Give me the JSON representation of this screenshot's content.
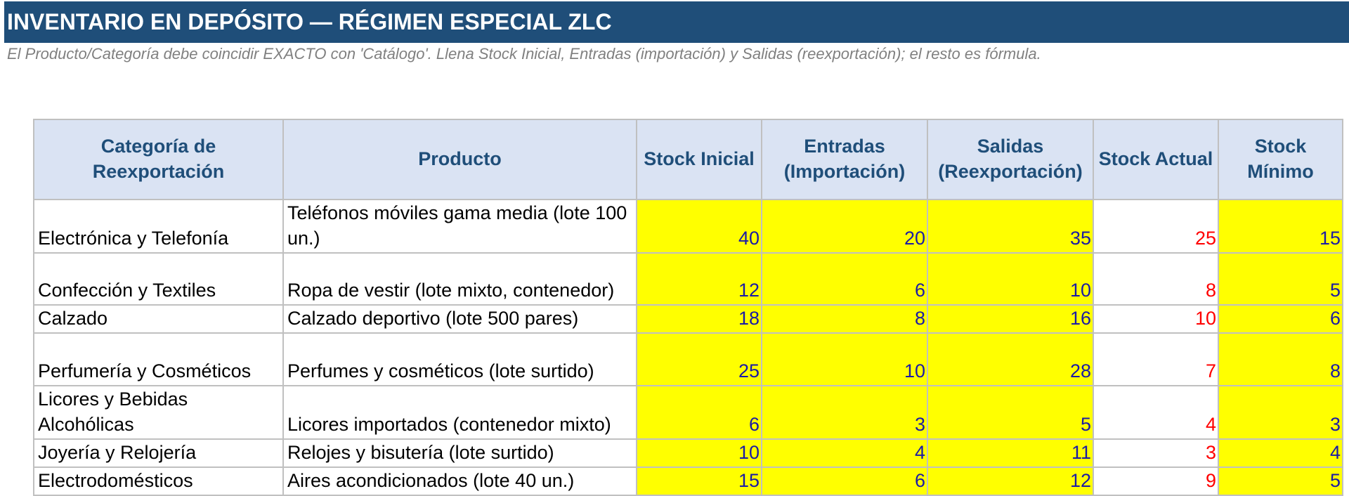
{
  "header": {
    "title": "INVENTARIO EN DEPÓSITO — RÉGIMEN ESPECIAL ZLC",
    "subtitle": "El Producto/Categoría debe coincidir EXACTO con 'Catálogo'. Llena Stock Inicial, Entradas (importación) y Salidas (reexportación); el resto es fórmula."
  },
  "table": {
    "columns": [
      "Categoría de Reexportación",
      "Producto",
      "Stock Inicial",
      "Entradas (Importación)",
      "Salidas (Reexportación)",
      "Stock Actual",
      "Stock Mínimo"
    ],
    "rows": [
      [
        "Electrónica y Telefonía",
        "Teléfonos móviles gama media (lote 100 un.)",
        40,
        20,
        35,
        25,
        15
      ],
      [
        "Confección y Textiles",
        "Ropa de vestir (lote mixto, contenedor)",
        12,
        6,
        10,
        8,
        5
      ],
      [
        "Calzado",
        "Calzado deportivo (lote 500 pares)",
        18,
        8,
        16,
        10,
        6
      ],
      [
        "Perfumería y Cosméticos",
        "Perfumes y cosméticos (lote surtido)",
        25,
        10,
        28,
        7,
        8
      ],
      [
        "Licores y Bebidas Alcohólicas",
        "Licores importados (contenedor mixto)",
        6,
        3,
        5,
        4,
        3
      ],
      [
        "Joyería y Relojería",
        "Relojes y bisutería (lote surtido)",
        10,
        4,
        11,
        3,
        4
      ],
      [
        "Electrodomésticos",
        "Aires acondicionados (lote 40 un.)",
        15,
        6,
        12,
        9,
        5
      ]
    ]
  }
}
